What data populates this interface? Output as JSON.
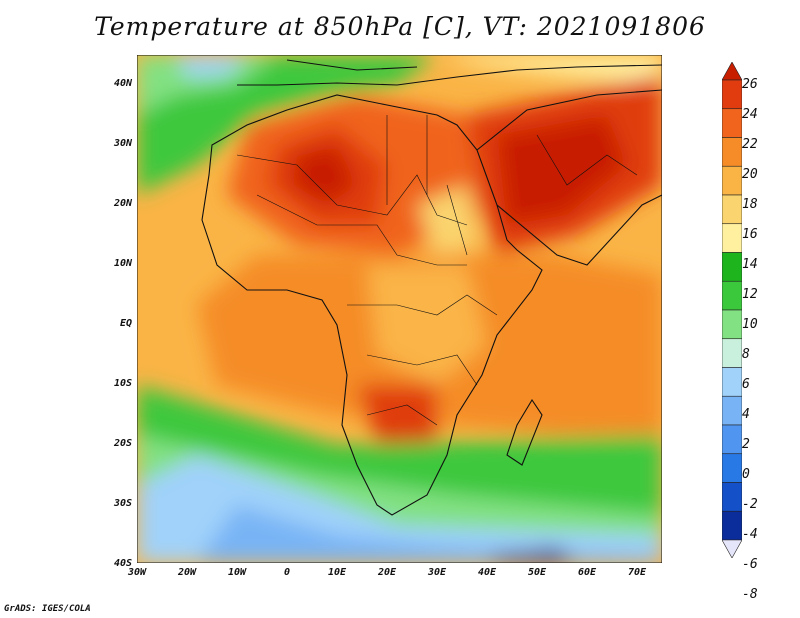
{
  "title": "Temperature at 850hPa [C], VT: 2021091806",
  "credit": "GrADS: IGES/COLA",
  "lat_labels": [
    "40N",
    "30N",
    "20N",
    "10N",
    "EQ",
    "10S",
    "20S",
    "30S",
    "40S"
  ],
  "lon_labels": [
    "30W",
    "20W",
    "10W",
    "0",
    "10E",
    "20E",
    "30E",
    "40E",
    "50E",
    "60E",
    "70E"
  ],
  "colorbar": {
    "labels": [
      "26",
      "24",
      "22",
      "20",
      "18",
      "16",
      "14",
      "12",
      "10",
      "8",
      "6",
      "4",
      "2",
      "0",
      "-2",
      "-4",
      "-6",
      "-8"
    ],
    "colors": [
      "#c81e00",
      "#e03c10",
      "#f0641e",
      "#f58c28",
      "#fab446",
      "#fad46e",
      "#fff0a0",
      "#1eb41e",
      "#3cc83c",
      "#82e182",
      "#c8f0dc",
      "#a0d2fa",
      "#78b4f5",
      "#5096f0",
      "#2878e6",
      "#1450c8",
      "#0a2d9b",
      "#082060"
    ]
  }
}
